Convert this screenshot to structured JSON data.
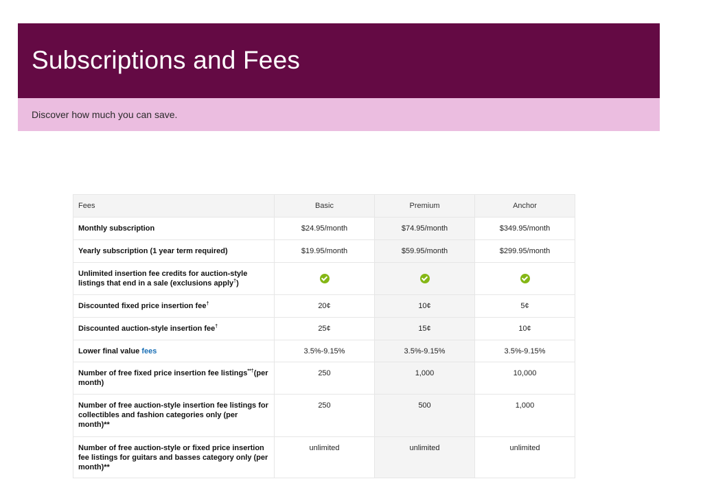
{
  "header": {
    "title": "Subscriptions and Fees",
    "subtitle": "Discover how much you can save."
  },
  "colors": {
    "banner": "#640a44",
    "subbanner": "#ebbde0",
    "check": "#85b716",
    "link": "#1a6fb5"
  },
  "table": {
    "columns": [
      "Fees",
      "Basic",
      "Premium",
      "Anchor"
    ],
    "rows": [
      {
        "label": "Monthly subscription",
        "values": [
          "$24.95/month",
          "$74.95/month",
          "$349.95/month"
        ]
      },
      {
        "label": "Yearly subscription (1 year term required)",
        "values": [
          "$19.95/month",
          "$59.95/month",
          "$299.95/month"
        ]
      },
      {
        "label": "Unlimited insertion fee credits for auction-style listings that end in a sale (exclusions apply",
        "label_sup": "†",
        "label_after": ")",
        "values_icon": "check-circle-icon"
      },
      {
        "label": "Discounted fixed price insertion fee",
        "label_sup": "†",
        "values": [
          "20¢",
          "10¢",
          "5¢"
        ]
      },
      {
        "label": "Discounted auction-style insertion fee",
        "label_sup": "†",
        "values": [
          "25¢",
          "15¢",
          "10¢"
        ]
      },
      {
        "label": "Lower final value ",
        "label_link": "fees",
        "values": [
          "3.5%-9.15%",
          "3.5%-9.15%",
          "3.5%-9.15%"
        ]
      },
      {
        "label": "Number of free fixed price insertion fee listings",
        "label_sup": "**†",
        "label_after": "(per month)",
        "values": [
          "250",
          "1,000",
          "10,000"
        ]
      },
      {
        "label": "Number of free auction-style insertion fee listings for collectibles and fashion categories only (per month)**",
        "values": [
          "250",
          "500",
          "1,000"
        ]
      },
      {
        "label": "Number of free auction-style or fixed price insertion fee listings for guitars and basses category only (per month)**",
        "values": [
          "unlimited",
          "unlimited",
          "unlimited"
        ]
      }
    ]
  }
}
